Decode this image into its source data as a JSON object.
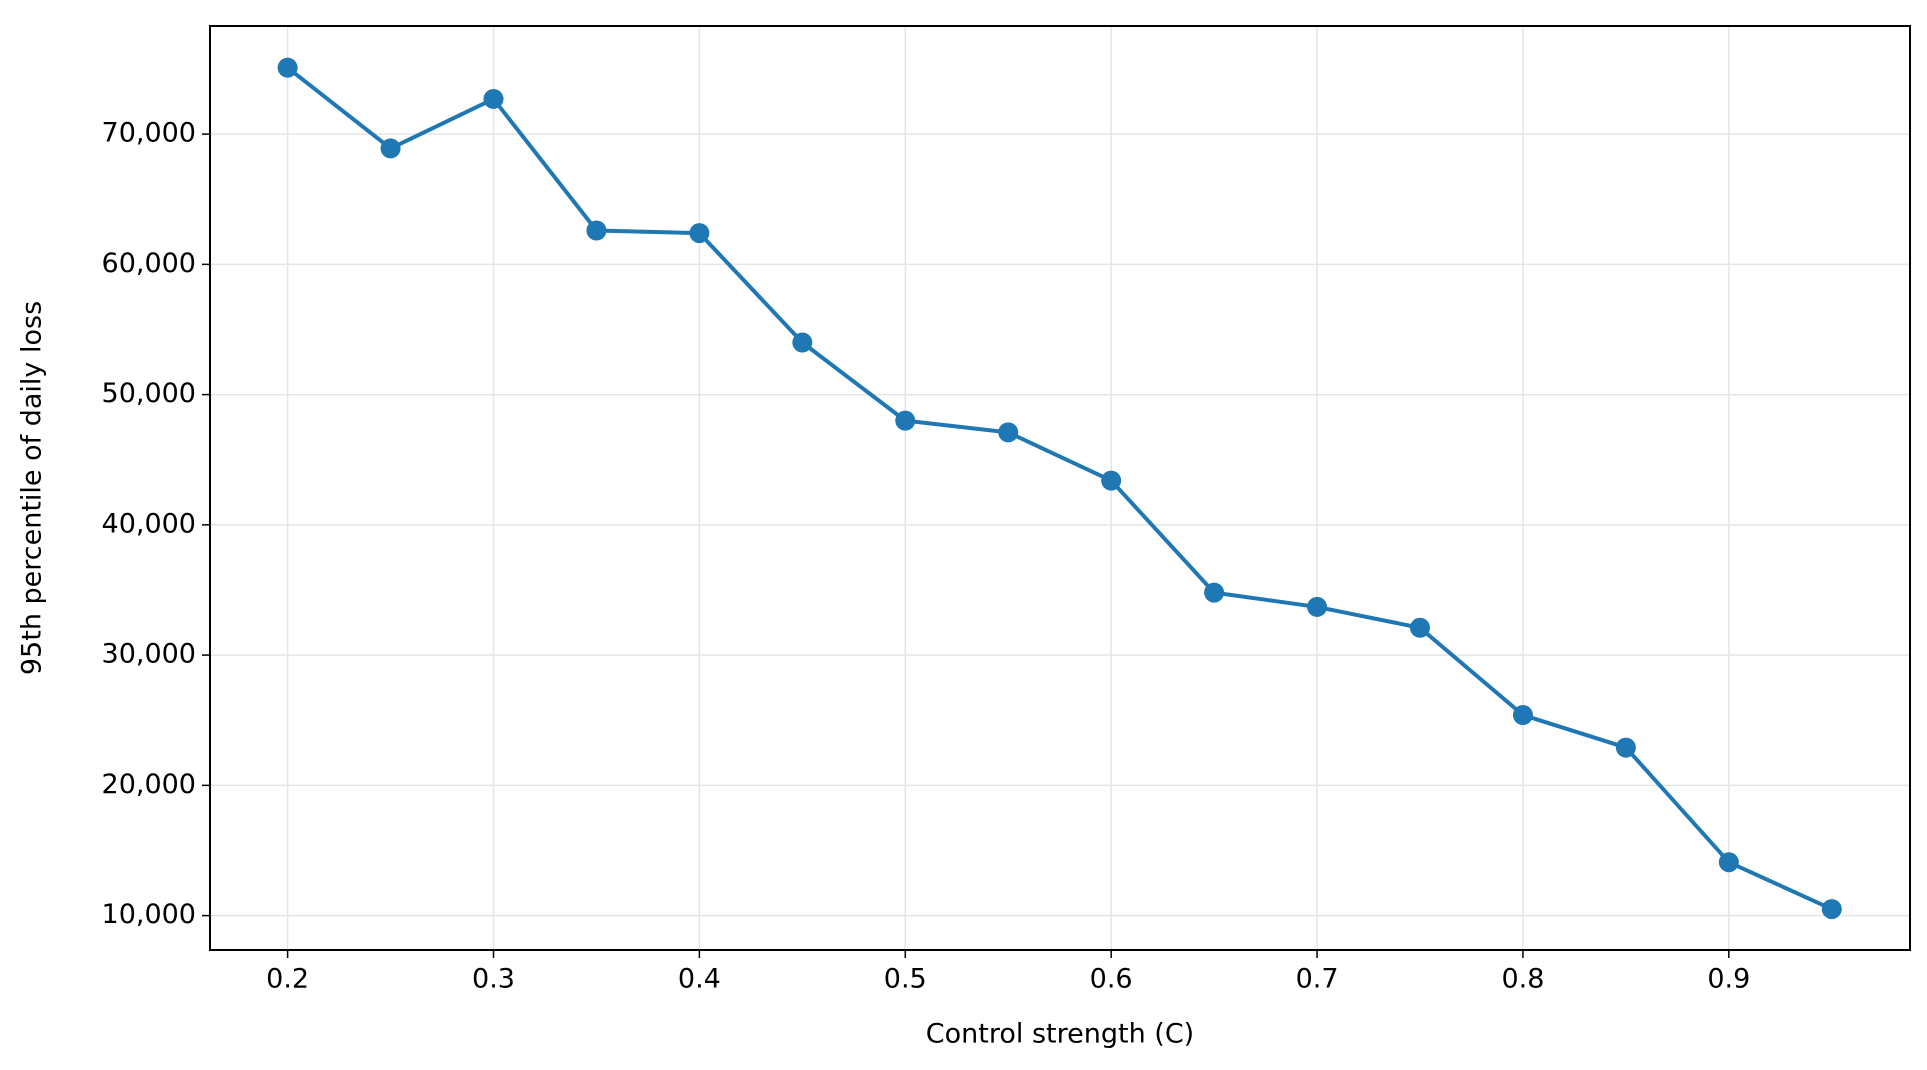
{
  "chart_data": {
    "type": "line",
    "title": null,
    "x_label": "Control strength (C)",
    "y_label": "95th percentile of daily loss",
    "x": [
      0.2,
      0.25,
      0.3,
      0.35,
      0.4,
      0.45,
      0.5,
      0.55,
      0.6,
      0.65,
      0.7,
      0.75,
      0.8,
      0.85,
      0.9,
      0.95
    ],
    "series": [
      {
        "name": "95th percentile of daily loss",
        "color": "#1f77b4",
        "values": [
          75100,
          68900,
          72700,
          62600,
          62400,
          54000,
          48000,
          47100,
          43400,
          34800,
          33700,
          32100,
          25400,
          22900,
          14100,
          10500
        ]
      }
    ],
    "xlim": [
      0.1623,
      0.988
    ],
    "ylim": [
      7360,
      78300
    ],
    "xticks": [
      0.2,
      0.3,
      0.4,
      0.5,
      0.6,
      0.7,
      0.8,
      0.9
    ],
    "yticks": [
      {
        "value": 10000,
        "label": "10,000"
      },
      {
        "value": 20000,
        "label": "20,000"
      },
      {
        "value": 30000,
        "label": "30,000"
      },
      {
        "value": 40000,
        "label": "40,000"
      },
      {
        "value": 50000,
        "label": "50,000"
      },
      {
        "value": 60000,
        "label": "60,000"
      },
      {
        "value": 70000,
        "label": "70,000"
      }
    ],
    "grid": true,
    "markers": true
  }
}
